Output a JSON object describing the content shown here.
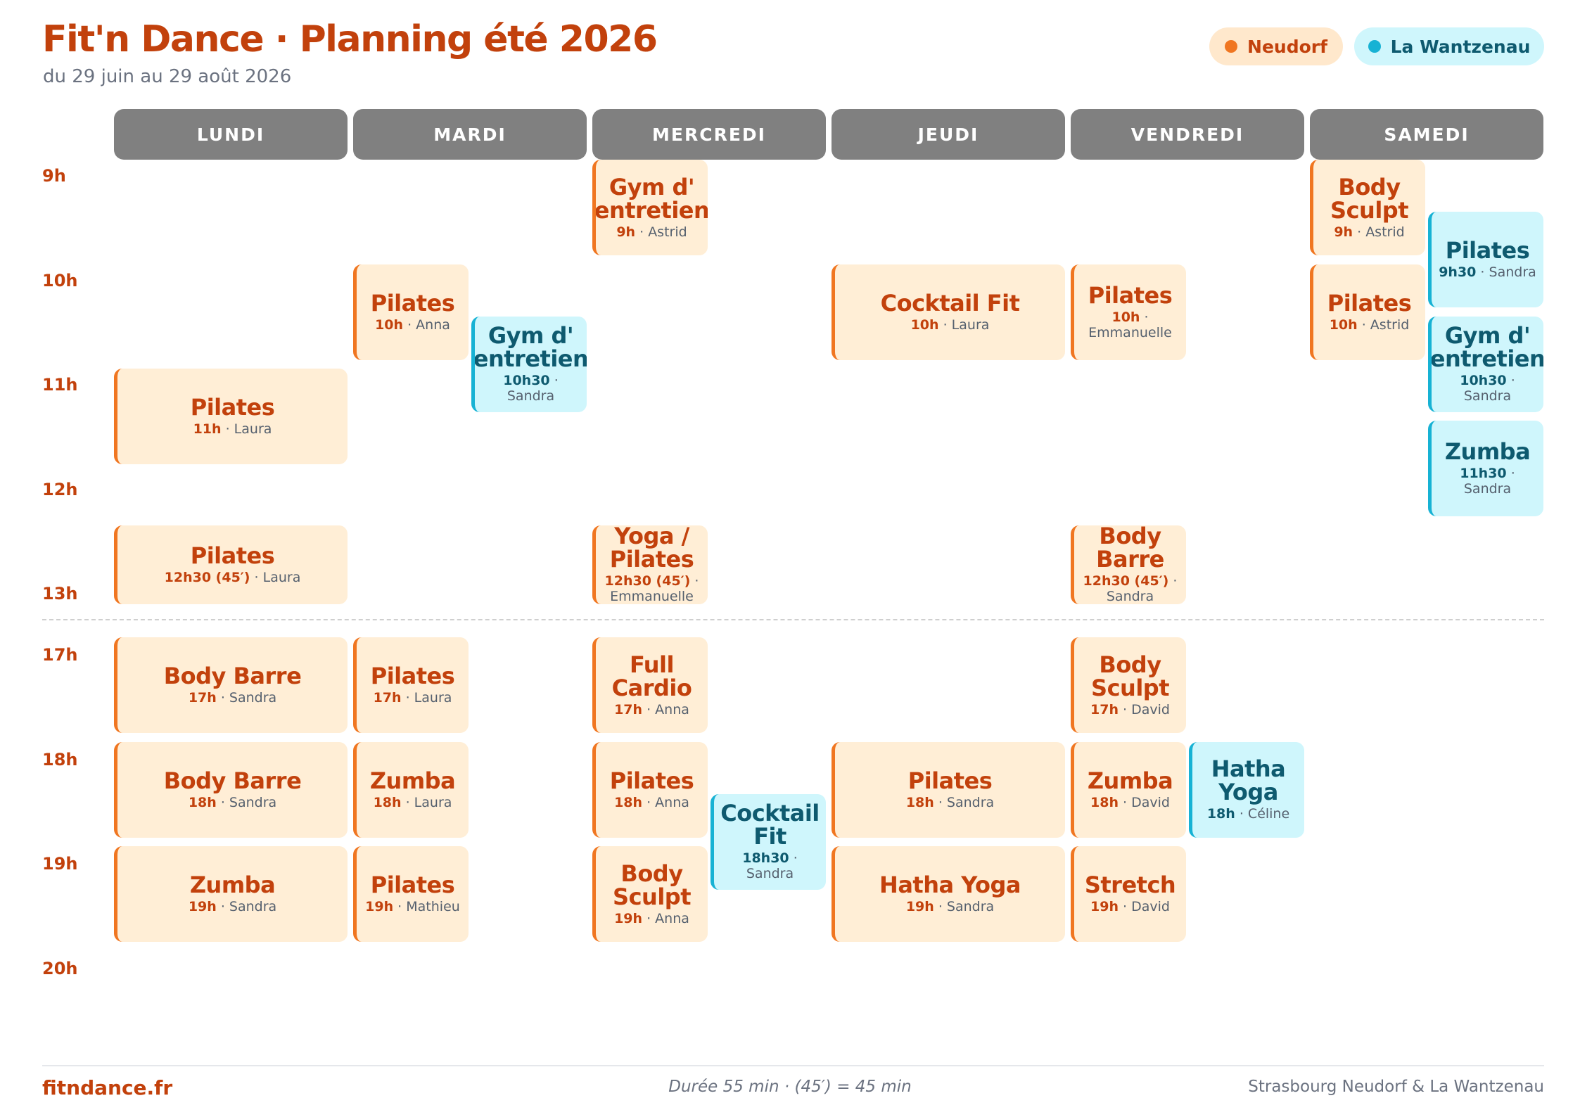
{
  "header": {
    "title": "Fit'n Dance · Planning été 2026",
    "subtitle": "du 29 juin au 29 août 2026"
  },
  "legend": {
    "neudorf": "Neudorf",
    "wantzenau": "La Wantzenau",
    "colors": {
      "neudorf": "#f07621",
      "wantzenau": "#17b2d4"
    }
  },
  "days": [
    "LUNDI",
    "MARDI",
    "MERCREDI",
    "JEUDI",
    "VENDREDI",
    "SAMEDI"
  ],
  "hours": [
    "9h",
    "10h",
    "11h",
    "12h",
    "13h",
    "17h",
    "18h",
    "19h",
    "20h"
  ],
  "sessions": [
    {
      "day": 0,
      "site": "neudorf",
      "start": 11,
      "dur": 55,
      "lane": "full",
      "name": "Pilates",
      "time": "11h",
      "teacher": "Laura"
    },
    {
      "day": 0,
      "site": "neudorf",
      "start": 12.5,
      "dur": 45,
      "lane": "full",
      "name": "Pilates",
      "time": "12h30 (45′)",
      "teacher": "Laura"
    },
    {
      "day": 0,
      "site": "neudorf",
      "start": 17,
      "dur": 55,
      "lane": "full",
      "name": "Body Barre",
      "time": "17h",
      "teacher": "Sandra"
    },
    {
      "day": 0,
      "site": "neudorf",
      "start": 18,
      "dur": 55,
      "lane": "full",
      "name": "Body Barre",
      "time": "18h",
      "teacher": "Sandra"
    },
    {
      "day": 0,
      "site": "neudorf",
      "start": 19,
      "dur": 55,
      "lane": "full",
      "name": "Zumba",
      "time": "19h",
      "teacher": "Sandra"
    },
    {
      "day": 1,
      "site": "neudorf",
      "start": 10,
      "dur": 55,
      "lane": "left",
      "name": "Pilates",
      "time": "10h",
      "teacher": "Anna"
    },
    {
      "day": 1,
      "site": "wantzenau",
      "start": 10.5,
      "dur": 55,
      "lane": "right",
      "name": "Gym d' entretien",
      "time": "10h30",
      "teacher": "Sandra"
    },
    {
      "day": 1,
      "site": "neudorf",
      "start": 17,
      "dur": 55,
      "lane": "left",
      "name": "Pilates",
      "time": "17h",
      "teacher": "Laura"
    },
    {
      "day": 1,
      "site": "neudorf",
      "start": 18,
      "dur": 55,
      "lane": "left",
      "name": "Zumba",
      "time": "18h",
      "teacher": "Laura"
    },
    {
      "day": 1,
      "site": "neudorf",
      "start": 19,
      "dur": 55,
      "lane": "left",
      "name": "Pilates",
      "time": "19h",
      "teacher": "Mathieu"
    },
    {
      "day": 2,
      "site": "neudorf",
      "start": 9,
      "dur": 55,
      "lane": "left",
      "name": "Gym d' entretien",
      "time": "9h",
      "teacher": "Astrid"
    },
    {
      "day": 2,
      "site": "neudorf",
      "start": 12.5,
      "dur": 45,
      "lane": "left",
      "name": "Yoga / Pilates",
      "time": "12h30 (45′)",
      "teacher": "Emmanuelle"
    },
    {
      "day": 2,
      "site": "neudorf",
      "start": 17,
      "dur": 55,
      "lane": "left",
      "name": "Full Cardio",
      "time": "17h",
      "teacher": "Anna"
    },
    {
      "day": 2,
      "site": "neudorf",
      "start": 18,
      "dur": 55,
      "lane": "left",
      "name": "Pilates",
      "time": "18h",
      "teacher": "Anna"
    },
    {
      "day": 2,
      "site": "wantzenau",
      "start": 18.5,
      "dur": 55,
      "lane": "right",
      "name": "Cocktail Fit",
      "time": "18h30",
      "teacher": "Sandra"
    },
    {
      "day": 2,
      "site": "neudorf",
      "start": 19,
      "dur": 55,
      "lane": "left",
      "name": "Body Sculpt",
      "time": "19h",
      "teacher": "Anna"
    },
    {
      "day": 3,
      "site": "neudorf",
      "start": 10,
      "dur": 55,
      "lane": "full",
      "name": "Cocktail Fit",
      "time": "10h",
      "teacher": "Laura"
    },
    {
      "day": 3,
      "site": "neudorf",
      "start": 18,
      "dur": 55,
      "lane": "full",
      "name": "Pilates",
      "time": "18h",
      "teacher": "Sandra"
    },
    {
      "day": 3,
      "site": "neudorf",
      "start": 19,
      "dur": 55,
      "lane": "full",
      "name": "Hatha Yoga",
      "time": "19h",
      "teacher": "Sandra"
    },
    {
      "day": 4,
      "site": "neudorf",
      "start": 10,
      "dur": 55,
      "lane": "left",
      "name": "Pilates",
      "time": "10h",
      "teacher": "Emmanuelle"
    },
    {
      "day": 4,
      "site": "neudorf",
      "start": 12.5,
      "dur": 45,
      "lane": "left",
      "name": "Body Barre",
      "time": "12h30 (45′)",
      "teacher": "Sandra"
    },
    {
      "day": 4,
      "site": "neudorf",
      "start": 17,
      "dur": 55,
      "lane": "left",
      "name": "Body Sculpt",
      "time": "17h",
      "teacher": "David"
    },
    {
      "day": 4,
      "site": "neudorf",
      "start": 18,
      "dur": 55,
      "lane": "left",
      "name": "Zumba",
      "time": "18h",
      "teacher": "David"
    },
    {
      "day": 4,
      "site": "wantzenau",
      "start": 18,
      "dur": 55,
      "lane": "right",
      "name": "Hatha Yoga",
      "time": "18h",
      "teacher": "Céline"
    },
    {
      "day": 4,
      "site": "neudorf",
      "start": 19,
      "dur": 55,
      "lane": "left",
      "name": "Stretch",
      "time": "19h",
      "teacher": "David"
    },
    {
      "day": 5,
      "site": "neudorf",
      "start": 9,
      "dur": 55,
      "lane": "left",
      "name": "Body Sculpt",
      "time": "9h",
      "teacher": "Astrid"
    },
    {
      "day": 5,
      "site": "wantzenau",
      "start": 9.5,
      "dur": 55,
      "lane": "right",
      "name": "Pilates",
      "time": "9h30",
      "teacher": "Sandra"
    },
    {
      "day": 5,
      "site": "neudorf",
      "start": 10,
      "dur": 55,
      "lane": "left",
      "name": "Pilates",
      "time": "10h",
      "teacher": "Astrid"
    },
    {
      "day": 5,
      "site": "wantzenau",
      "start": 10.5,
      "dur": 55,
      "lane": "right",
      "name": "Gym d' entretien",
      "time": "10h30",
      "teacher": "Sandra"
    },
    {
      "day": 5,
      "site": "wantzenau",
      "start": 11.5,
      "dur": 55,
      "lane": "right",
      "name": "Zumba",
      "time": "11h30",
      "teacher": "Sandra"
    }
  ],
  "footer": {
    "site": "fitndance.fr",
    "note": "Durée 55 min · (45′) = 45 min",
    "place": "Strasbourg Neudorf & La Wantzenau"
  }
}
